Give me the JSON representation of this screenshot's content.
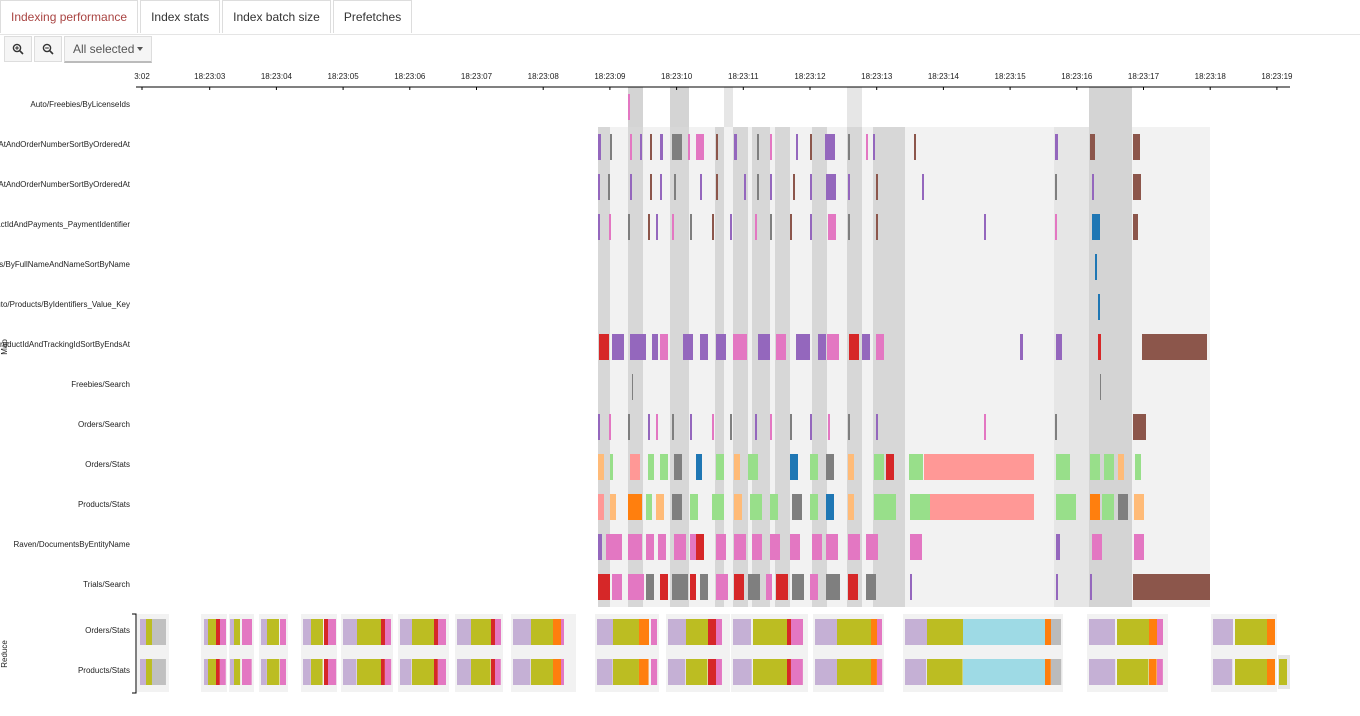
{
  "tabs": [
    {
      "label": "Indexing performance",
      "active": true
    },
    {
      "label": "Index stats",
      "active": false
    },
    {
      "label": "Index batch size",
      "active": false
    },
    {
      "label": "Prefetches",
      "active": false
    }
  ],
  "toolbar": {
    "zoom_in_icon": "zoom-in-icon",
    "zoom_out_icon": "zoom-out-icon",
    "selection_label": "All selected"
  },
  "axis": {
    "ticks": [
      "3:02",
      "18:23:03",
      "18:23:04",
      "18:23:05",
      "18:23:06",
      "18:23:07",
      "18:23:08",
      "18:23:09",
      "18:23:10",
      "18:23:11",
      "18:23:12",
      "18:23:13",
      "18:23:14",
      "18:23:15",
      "18:23:16",
      "18:23:17",
      "18:23:18",
      "18:23:19"
    ]
  },
  "groups": {
    "map_label": "Map",
    "reduce_label": "Reduce"
  },
  "map_rows": [
    "Auto/Freebies/ByLicenseIds",
    "lAtAndOrderNumberSortByOrderedAt",
    "lAtAndOrderNumberSortByOrderedAt",
    "ractIdAndPayments_PaymentIdentifier",
    "s/ByFullNameAndNameSortByName",
    "uto/Products/ByIdentifiers_Value_Key",
    "roductIdAndTrackingIdSortByEndsAt",
    "Freebies/Search",
    "Orders/Search",
    "Orders/Stats",
    "Products/Stats",
    "Raven/DocumentsByEntityName",
    "Trials/Search"
  ],
  "reduce_rows": [
    "Orders/Stats",
    "Products/Stats"
  ],
  "colors": {
    "purple": "#9467bd",
    "pink": "#e377c2",
    "gray": "#7f7f7f",
    "olive": "#bcbd22",
    "cyan": "#9edae5",
    "salmon": "#ff9896",
    "brown": "#8c564b",
    "red": "#d62728",
    "orange": "#ff7f0e",
    "lightgreen": "#98df8a",
    "lavender": "#c5b0d5",
    "blue": "#1f77b4",
    "tan": "#f7b6d2",
    "peach": "#ffbb78",
    "shade": "#f2f2f2",
    "dark": "#d4d4d4",
    "mid": "#e6e6e6"
  }
}
